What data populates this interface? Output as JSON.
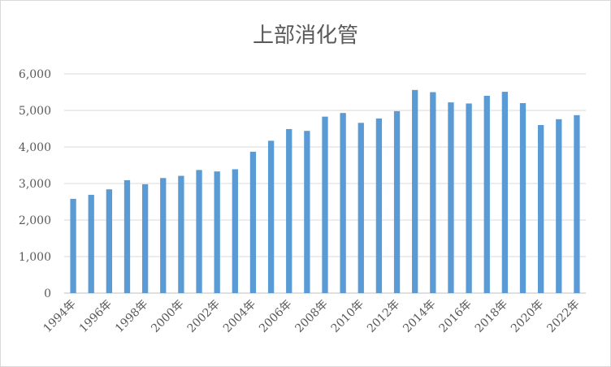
{
  "chart_data": {
    "type": "bar",
    "title": "上部消化管",
    "xlabel": "",
    "ylabel": "",
    "ylim": [
      0,
      6000
    ],
    "yticks": [
      "0",
      "1,000",
      "2,000",
      "3,000",
      "4,000",
      "5,000",
      "6,000"
    ],
    "grid": true,
    "legend": "none",
    "categories": [
      "1994年",
      "1995年",
      "1996年",
      "1997年",
      "1998年",
      "1999年",
      "2000年",
      "2001年",
      "2002年",
      "2003年",
      "2004年",
      "2005年",
      "2006年",
      "2007年",
      "2008年",
      "2009年",
      "2010年",
      "2011年",
      "2012年",
      "2013年",
      "2014年",
      "2015年",
      "2016年",
      "2017年",
      "2018年",
      "2019年",
      "2020年",
      "2021年",
      "2022年"
    ],
    "x_tick_labels": [
      "1994年",
      "1996年",
      "1998年",
      "2000年",
      "2002年",
      "2004年",
      "2006年",
      "2008年",
      "2010年",
      "2012年",
      "2014年",
      "2016年",
      "2018年",
      "2020年",
      "2022年"
    ],
    "values": [
      2580,
      2690,
      2840,
      3090,
      2980,
      3150,
      3210,
      3370,
      3330,
      3390,
      3870,
      4170,
      4490,
      4440,
      4830,
      4930,
      4660,
      4780,
      4980,
      5560,
      5500,
      5220,
      5190,
      5400,
      5510,
      5200,
      4600,
      4760,
      4870
    ],
    "colors": {
      "bar": "#5b9bd5",
      "grid": "#d9d9d9",
      "axis": "#bfbfbf",
      "text": "#595959"
    }
  }
}
